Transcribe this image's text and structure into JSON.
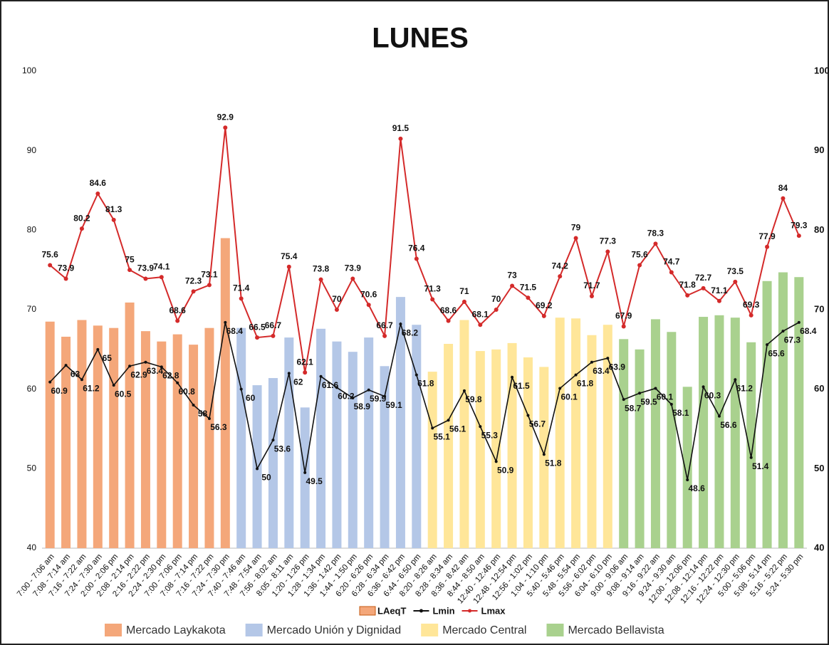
{
  "chart_data": {
    "type": "bar_line",
    "title": "LUNES",
    "categories": [
      "7:00 - 7:06 am",
      "7:08 - 7:14 am",
      "7:16 - 7:22 am",
      "7:24 - 7:30 am",
      "2:00 - 2:06 pm",
      "2:08 - 2:14 pm",
      "2:16 - 2:22 pm",
      "2:24 - 2:30 pm",
      "7:00 - 7:06 pm",
      "7:08 - 7:14 pm",
      "7:16 - 7:22 pm",
      "7:24 - 7:30 pm",
      "7:40 - 7:46 am",
      "7:48 - 7:54 am",
      "7:56 - 8:02 am",
      "8:05 - 8:11 am",
      "1:20 - 1:26 pm",
      "1:28 - 1:34 pm",
      "1:36 - 1:42 pm",
      "1:44 - 1:50 pm",
      "6:20 - 6:26 pm",
      "6:28 - 6:34 pm",
      "6:36 - 6:42 pm",
      "6:44 - 6:50 pm",
      "8:20 - 8:26 am",
      "8:28 - 8:34 am",
      "8:36 - 8:42 am",
      "8:44 - 8:50 am",
      "12:40 - 12:46 pm",
      "12:48 - 12:54 pm",
      "12:56 - 1:02 pm",
      "1:04 - 1:10 pm",
      "5:40 - 5:46 pm",
      "5:48 - 5:54 pm",
      "5:56 - 6:02 pm",
      "6:04 - 6:10 pm",
      "9:00 - 9:06 am",
      "9:08 - 9:14 am",
      "9:16 - 9:22 am",
      "9:24 - 9:30 am",
      "12:00 - 12:06 pm",
      "12:08 - 12:14 pm",
      "12:16 - 12:22 pm",
      "12:24 - 12:30 pm",
      "5:00 - 5:06 pm",
      "5:08 - 5:14 pm",
      "5:16 - 5:22 pm",
      "5:24 - 5:30 pm"
    ],
    "series": [
      {
        "name": "LAeqT",
        "kind": "bar",
        "color": "#f4a77a",
        "values": [
          68.5,
          66.6,
          68.7,
          68,
          67.7,
          70.9,
          67.3,
          66,
          66.9,
          65.6,
          67.7,
          79,
          67.7,
          60.5,
          61.4,
          66.5,
          57.7,
          67.6,
          66,
          64.7,
          66.5,
          62.9,
          71.6,
          68.1,
          62.2,
          65.7,
          68.7,
          64.8,
          65,
          65.8,
          64,
          62.8,
          69,
          68.9,
          66.8,
          68.1,
          66.3,
          65,
          68.8,
          67.2,
          60.3,
          69.1,
          69.3,
          69,
          65.9,
          73.6,
          74.7,
          74.1
        ]
      },
      {
        "name": "Lmin",
        "kind": "line",
        "color": "#111111",
        "values": [
          60.9,
          63,
          61.2,
          65,
          60.5,
          62.9,
          63.4,
          62.8,
          60.8,
          58,
          56.3,
          68.4,
          60,
          50,
          53.6,
          62,
          49.5,
          61.6,
          60.2,
          58.9,
          59.9,
          59.1,
          68.2,
          61.8,
          55.1,
          56.1,
          59.8,
          55.3,
          50.9,
          61.5,
          56.7,
          51.8,
          60.1,
          61.8,
          63.4,
          63.9,
          58.7,
          59.5,
          60.1,
          58.1,
          48.6,
          60.3,
          56.6,
          61.2,
          51.4,
          65.6,
          67.3,
          68.4
        ]
      },
      {
        "name": "Lmax",
        "kind": "line",
        "color": "#d42a2a",
        "values": [
          75.6,
          73.9,
          80.2,
          84.6,
          81.3,
          75,
          73.9,
          74.1,
          68.6,
          72.3,
          73.1,
          92.9,
          71.4,
          66.5,
          66.7,
          75.4,
          62.1,
          73.8,
          70,
          73.9,
          70.6,
          66.7,
          91.5,
          76.4,
          71.3,
          68.6,
          71,
          68.1,
          70,
          73,
          71.5,
          69.2,
          74.2,
          79,
          71.7,
          77.3,
          67.9,
          75.6,
          78.3,
          74.7,
          71.8,
          72.7,
          71.1,
          73.5,
          69.3,
          77.9,
          84,
          79.3
        ]
      }
    ],
    "markets": [
      {
        "name": "Mercado Laykakota",
        "color": "#f4a77a"
      },
      {
        "name": "Mercado Unión y Dignidad",
        "color": "#b4c7e7"
      },
      {
        "name": "Mercado Central",
        "color": "#ffe699"
      },
      {
        "name": "Mercado Bellavista",
        "color": "#a9d18e"
      }
    ],
    "ylim": [
      40,
      100
    ],
    "yticks": [
      40,
      50,
      60,
      70,
      80,
      90,
      100
    ],
    "y2lim": [
      40,
      100
    ],
    "y2ticks": [
      40,
      50,
      60,
      70,
      80,
      90,
      100
    ]
  }
}
